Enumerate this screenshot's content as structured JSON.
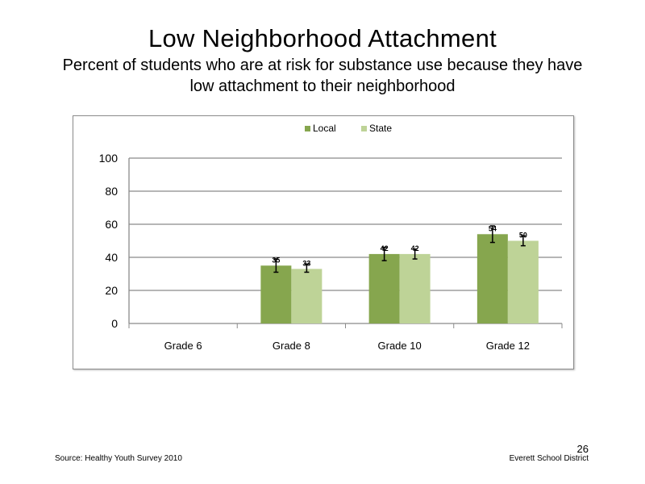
{
  "slide": {
    "title": "Low Neighborhood  Attachment",
    "subtitle": "Percent of students  who are at risk for substance use because they have low attachment  to their neighborhood",
    "source": "Source: Healthy Youth Survey 2010",
    "organization": "Everett School District",
    "page_number": "26"
  },
  "chart_data": {
    "type": "bar",
    "categories": [
      "Grade 6",
      "Grade 8",
      "Grade 10",
      "Grade 12"
    ],
    "series": [
      {
        "name": "Local",
        "color": "#86a64e",
        "values": [
          null,
          35,
          42,
          54
        ],
        "error_low": [
          null,
          31,
          38,
          49
        ],
        "error_high": [
          null,
          39,
          46,
          59
        ]
      },
      {
        "name": "State",
        "color": "#bed397",
        "values": [
          null,
          33,
          42,
          50
        ],
        "error_low": [
          null,
          31,
          39,
          47
        ],
        "error_high": [
          null,
          36,
          45,
          53
        ]
      }
    ],
    "data_labels": [
      [
        null,
        "35",
        "42",
        "54"
      ],
      [
        null,
        "33",
        "42",
        "50"
      ]
    ],
    "ylim": [
      0,
      100
    ],
    "yticks": [
      "0",
      "20",
      "40",
      "60",
      "80",
      "100"
    ],
    "grid": true,
    "legend_position": "top"
  }
}
